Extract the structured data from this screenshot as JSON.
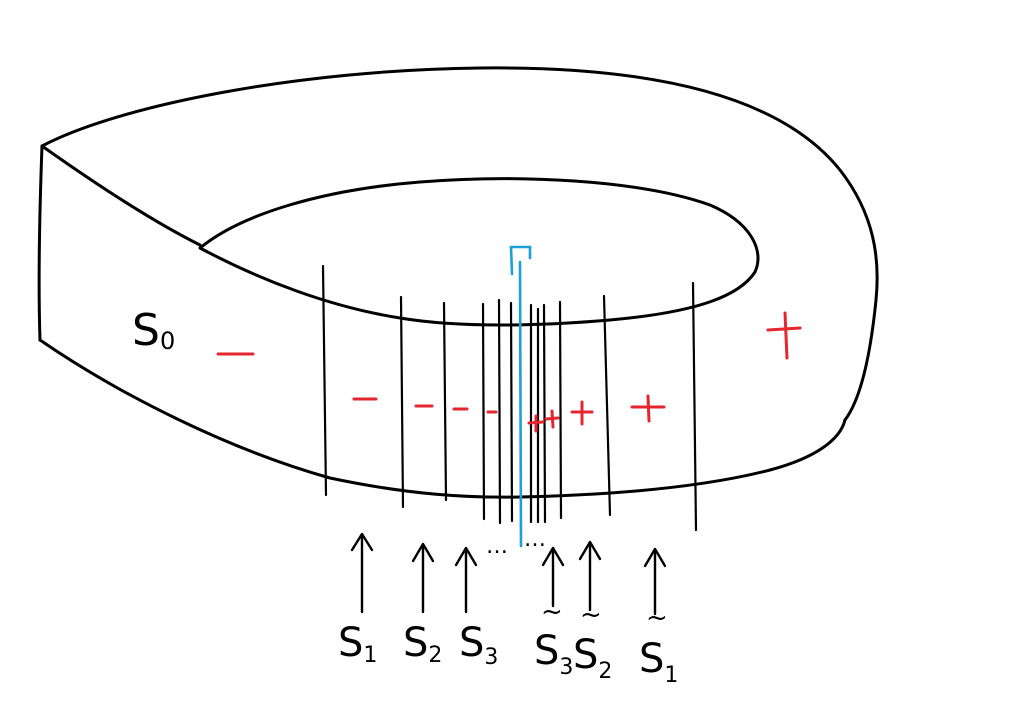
{
  "colors": {
    "ink": "#000000",
    "sign": "#e3262f",
    "gamma": "#1ba1d8"
  },
  "surface": {
    "label_main": "S",
    "label_sub": "0"
  },
  "gamma": {
    "label": "Γ"
  },
  "signs": {
    "outer_left": "—",
    "outer_right": "+",
    "front_minus": "-",
    "front_plus": "+"
  },
  "arrows": {
    "left": [
      {
        "main": "S",
        "sub": "1",
        "tilde": ""
      },
      {
        "main": "S",
        "sub": "2",
        "tilde": ""
      },
      {
        "main": "S",
        "sub": "3",
        "tilde": ""
      }
    ],
    "ellipsis": "…",
    "right": [
      {
        "main": "S",
        "sub": "3",
        "tilde": "~"
      },
      {
        "main": "S",
        "sub": "2",
        "tilde": "~"
      },
      {
        "main": "S",
        "sub": "1",
        "tilde": "~"
      }
    ]
  }
}
